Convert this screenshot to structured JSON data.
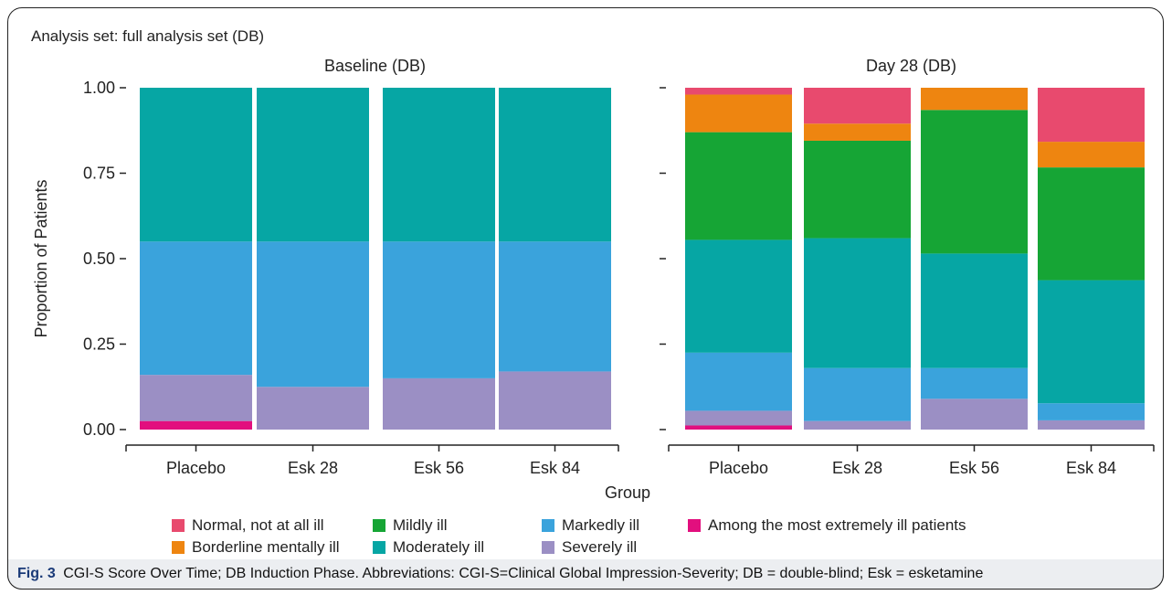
{
  "analysis_label": "Analysis set: full analysis set (DB)",
  "caption": {
    "label": "Fig. 3",
    "text": "CGI-S Score Over Time; DB Induction Phase. Abbreviations: CGI-S=Clinical Global Impression-Severity; DB = double-blind; Esk = esketamine"
  },
  "colors": {
    "Normal, not at all ill": "#e84a6e",
    "Borderline mentally ill": "#ee8510",
    "Mildly ill": "#16a535",
    "Moderately ill": "#06a6a4",
    "Markedly ill": "#3aa3dc",
    "Severely ill": "#9b8fc4",
    "Among the most extremely ill patients": "#e20f7e"
  },
  "legend": [
    "Normal, not at all ill",
    "Borderline mentally ill",
    "Mildly ill",
    "Moderately ill",
    "Markedly ill",
    "Severely ill",
    "Among the most extremely ill patients"
  ],
  "chart_data": {
    "type": "bar",
    "stacked": true,
    "ylabel": "Proportion of Patients",
    "xlabel": "Group",
    "ylim": [
      0,
      1
    ],
    "yticks": [
      "0.00",
      "0.25",
      "0.50",
      "0.75",
      "1.00"
    ],
    "grid": false,
    "legend_position": "bottom",
    "panels": [
      {
        "title": "Baseline (DB)",
        "categories": [
          "Placebo",
          "Esk 28",
          "Esk 56",
          "Esk 84"
        ],
        "series": [
          {
            "name": "Among the most extremely ill patients",
            "values": [
              0.025,
              0,
              0,
              0
            ]
          },
          {
            "name": "Severely ill",
            "values": [
              0.135,
              0.125,
              0.15,
              0.17
            ]
          },
          {
            "name": "Markedly ill",
            "values": [
              0.39,
              0.425,
              0.4,
              0.38
            ]
          },
          {
            "name": "Moderately ill",
            "values": [
              0.45,
              0.45,
              0.45,
              0.45
            ]
          },
          {
            "name": "Mildly ill",
            "values": [
              0,
              0,
              0,
              0
            ]
          },
          {
            "name": "Borderline mentally ill",
            "values": [
              0,
              0,
              0,
              0
            ]
          },
          {
            "name": "Normal, not at all ill",
            "values": [
              0,
              0,
              0,
              0
            ]
          }
        ]
      },
      {
        "title": "Day 28 (DB)",
        "categories": [
          "Placebo",
          "Esk 28",
          "Esk 56",
          "Esk 84"
        ],
        "series": [
          {
            "name": "Among the most extremely ill patients",
            "values": [
              0.012,
              0,
              0,
              0
            ]
          },
          {
            "name": "Severely ill",
            "values": [
              0.043,
              0.025,
              0.09,
              0.027
            ]
          },
          {
            "name": "Markedly ill",
            "values": [
              0.17,
              0.155,
              0.09,
              0.05
            ]
          },
          {
            "name": "Moderately ill",
            "values": [
              0.33,
              0.38,
              0.335,
              0.36
            ]
          },
          {
            "name": "Mildly ill",
            "values": [
              0.315,
              0.285,
              0.42,
              0.33
            ]
          },
          {
            "name": "Borderline mentally ill",
            "values": [
              0.11,
              0.05,
              0.065,
              0.075
            ]
          },
          {
            "name": "Normal, not at all ill",
            "values": [
              0.02,
              0.105,
              0,
              0.158
            ]
          }
        ]
      }
    ]
  }
}
